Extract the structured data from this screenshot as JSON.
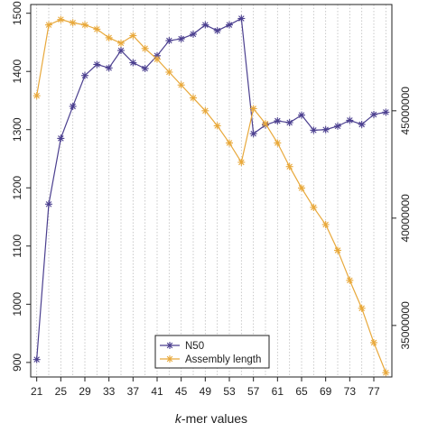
{
  "chart_data": {
    "type": "line",
    "xlabel": "k-mer values",
    "xlabel_italic": "k",
    "xlabel_rest": "-mer values",
    "x_ticks": [
      21,
      25,
      29,
      33,
      37,
      41,
      45,
      49,
      53,
      57,
      61,
      65,
      69,
      73,
      77
    ],
    "x": [
      21,
      23,
      25,
      27,
      29,
      31,
      33,
      35,
      37,
      39,
      41,
      43,
      45,
      47,
      49,
      51,
      53,
      55,
      57,
      59,
      61,
      63,
      65,
      67,
      69,
      71,
      73,
      75,
      77,
      79
    ],
    "xlim": [
      20,
      80
    ],
    "y_left": {
      "ticks": [
        900,
        1000,
        1100,
        1200,
        1300,
        1400,
        1500
      ],
      "lim": [
        875,
        1515
      ]
    },
    "y_right": {
      "ticks": [
        "35000000",
        "40000000",
        "45000000"
      ],
      "tick_values": [
        35000000,
        40000000,
        45000000
      ],
      "lim": [
        32600000,
        49950000
      ]
    },
    "grid": "vertical-dotted",
    "legend_position": "bottom-center",
    "series": [
      {
        "name": "N50",
        "axis": "left",
        "color": "#4b3f8f",
        "marker": "asterisk",
        "values": [
          905,
          1172,
          1285,
          1340,
          1393,
          1412,
          1406,
          1436,
          1415,
          1405,
          1427,
          1453,
          1456,
          1464,
          1480,
          1470,
          1480,
          1491,
          1293,
          1308,
          1315,
          1312,
          1325,
          1299,
          1300,
          1306,
          1316,
          1309,
          1326,
          1330
        ]
      },
      {
        "name": "Assembly length",
        "axis": "right",
        "color": "#e8a83a",
        "marker": "asterisk",
        "values": [
          45700000,
          49000000,
          49250000,
          49100000,
          49000000,
          48800000,
          48400000,
          48150000,
          48500000,
          47900000,
          47400000,
          46800000,
          46200000,
          45600000,
          45000000,
          44300000,
          43500000,
          42600000,
          45100000,
          44400000,
          43500000,
          42400000,
          41400000,
          40500000,
          39700000,
          38500000,
          37100000,
          35800000,
          34200000,
          32800000
        ]
      }
    ]
  }
}
